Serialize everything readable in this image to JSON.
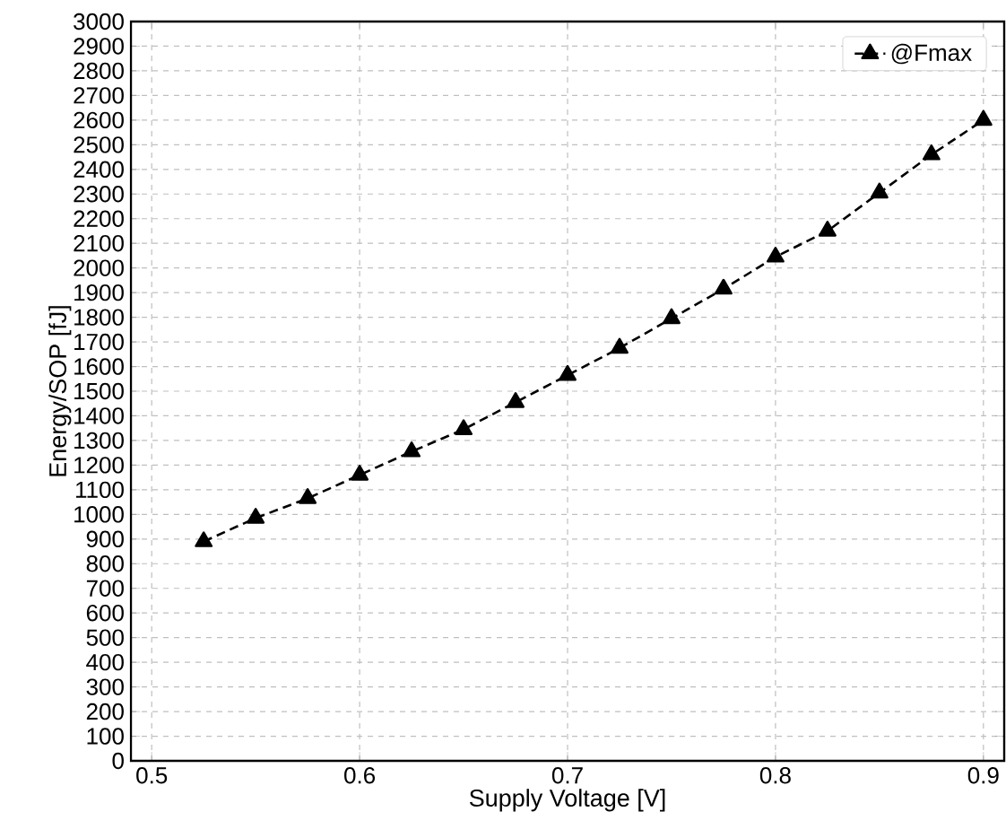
{
  "chart_data": {
    "type": "line",
    "xlabel": "Supply Voltage [V]",
    "ylabel": "Energy/SOP [fJ]",
    "x": [
      0.525,
      0.55,
      0.575,
      0.6,
      0.625,
      0.65,
      0.675,
      0.7,
      0.725,
      0.75,
      0.775,
      0.8,
      0.825,
      0.85,
      0.875,
      0.9
    ],
    "series": [
      {
        "name": "@Fmax",
        "color": "#000000",
        "values": [
          890,
          985,
          1065,
          1160,
          1255,
          1345,
          1455,
          1565,
          1675,
          1795,
          1915,
          2045,
          2150,
          2305,
          2460,
          2600
        ]
      }
    ],
    "xlim": [
      0.49,
      0.91
    ],
    "xticks": [
      0.5,
      0.6,
      0.7,
      0.8,
      0.9
    ],
    "ylim": [
      0,
      3000
    ],
    "yticks": [
      0,
      100,
      200,
      300,
      400,
      500,
      600,
      700,
      800,
      900,
      1000,
      1100,
      1200,
      1300,
      1400,
      1500,
      1600,
      1700,
      1800,
      1900,
      2000,
      2100,
      2200,
      2300,
      2400,
      2500,
      2600,
      2700,
      2800,
      2900,
      3000
    ],
    "grid": true,
    "legend": "top right",
    "marker": "triangle",
    "line_style": "dashed"
  }
}
